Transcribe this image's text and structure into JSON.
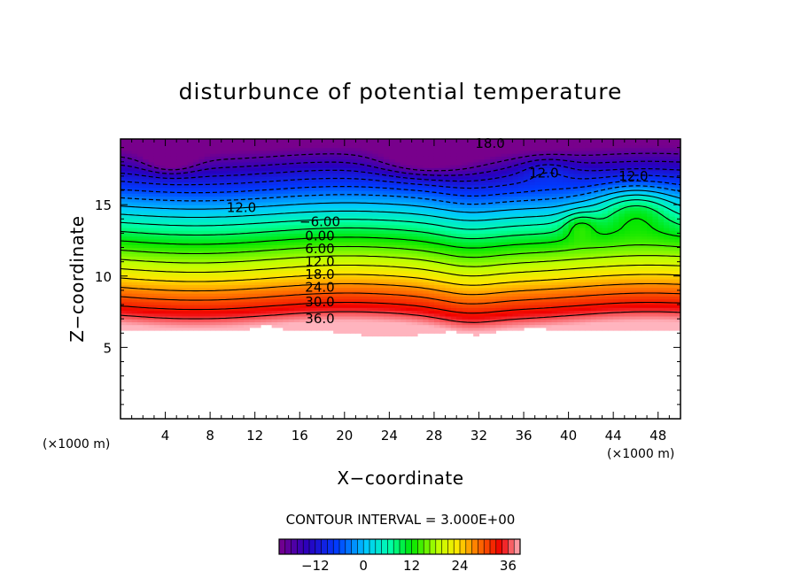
{
  "chart_data": {
    "type": "contour",
    "title": "disturbunce of potential temperature",
    "xlabel": "X−coordinate",
    "ylabel": "Z−coordinate",
    "x_unit": "(×1000 m)",
    "x_unit_left": "(×1000 m)",
    "xlim": [
      0,
      50
    ],
    "ylim": [
      0,
      19.6
    ],
    "x_ticks": [
      "4",
      "8",
      "12",
      "16",
      "20",
      "24",
      "28",
      "32",
      "36",
      "40",
      "44",
      "48"
    ],
    "x_tick_values": [
      4,
      8,
      12,
      16,
      20,
      24,
      28,
      32,
      36,
      40,
      44,
      48
    ],
    "y_ticks": [
      "5",
      "10",
      "15"
    ],
    "y_tick_values": [
      5,
      10,
      15
    ],
    "contour_interval_text": "CONTOUR INTERVAL = 3.000E+00",
    "contour_interval": 3,
    "value_range": [
      -21,
      39
    ],
    "contour_labels": [
      {
        "text": "18.0",
        "x": 33.0,
        "z": 19.3
      },
      {
        "text": "12.0",
        "x": 37.8,
        "z": 17.2
      },
      {
        "text": "12.0",
        "x": 45.8,
        "z": 17.0
      },
      {
        "text": "12.0",
        "x": 10.8,
        "z": 14.8
      },
      {
        "text": "−6.00",
        "x": 17.8,
        "z": 13.8
      },
      {
        "text": "0.00",
        "x": 17.8,
        "z": 12.8
      },
      {
        "text": "6.00",
        "x": 17.8,
        "z": 11.9
      },
      {
        "text": "12.0",
        "x": 17.8,
        "z": 11.0
      },
      {
        "text": "18.0",
        "x": 17.8,
        "z": 10.1
      },
      {
        "text": "24.0",
        "x": 17.8,
        "z": 9.2
      },
      {
        "text": "30.0",
        "x": 17.8,
        "z": 8.2
      },
      {
        "text": "36.0",
        "x": 17.8,
        "z": 7.0
      }
    ],
    "colorbar": {
      "tick_labels": [
        "−12",
        "0",
        "12",
        "24",
        "36"
      ],
      "tick_values": [
        -12,
        0,
        12,
        24,
        36
      ],
      "range": [
        -21,
        39
      ]
    }
  }
}
